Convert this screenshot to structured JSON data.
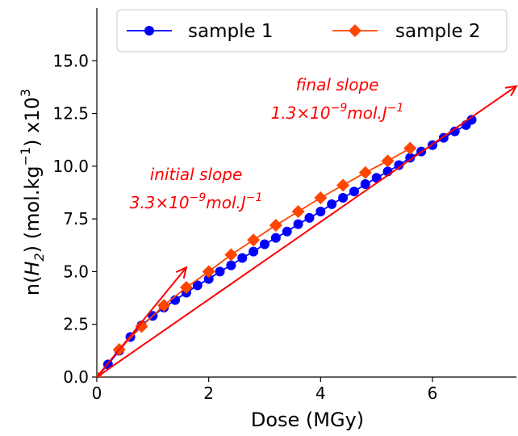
{
  "chart_data": {
    "type": "line",
    "xlabel": "Dose (MGy)",
    "ylabel_parts": {
      "prefix": "n(",
      "h": "H",
      "h_sub": "2",
      "mid": ") (mol.kg",
      "kg_sup": "−1",
      "post": ") x10",
      "ten_sup": "3"
    },
    "xlim": [
      0,
      7.5
    ],
    "ylim": [
      0,
      17.5
    ],
    "x_ticks": [
      0,
      2,
      4,
      6
    ],
    "x_tick_labels": [
      "0",
      "2",
      "4",
      "6"
    ],
    "y_ticks": [
      0,
      2.5,
      5,
      7.5,
      10,
      12.5,
      15
    ],
    "y_tick_labels": [
      "0.0",
      "2.5",
      "5.0",
      "7.5",
      "10.0",
      "12.5",
      "15.0"
    ],
    "grid": false,
    "legend_position": "top",
    "series": [
      {
        "name": "sample 1",
        "color": "#0000ff",
        "marker": "circle",
        "x": [
          0,
          0.2,
          0.4,
          0.6,
          0.8,
          1.0,
          1.2,
          1.4,
          1.6,
          1.8,
          2.0,
          2.2,
          2.4,
          2.6,
          2.8,
          3.0,
          3.2,
          3.4,
          3.6,
          3.8,
          4.0,
          4.2,
          4.4,
          4.6,
          4.8,
          5.0,
          5.2,
          5.4,
          5.6,
          5.8,
          6.0,
          6.2,
          6.4,
          6.6,
          6.7
        ],
        "y": [
          0,
          0.6,
          1.25,
          1.9,
          2.45,
          2.9,
          3.3,
          3.65,
          4.0,
          4.35,
          4.65,
          5.0,
          5.3,
          5.65,
          5.95,
          6.3,
          6.6,
          6.9,
          7.25,
          7.55,
          7.85,
          8.2,
          8.5,
          8.8,
          9.15,
          9.45,
          9.75,
          10.05,
          10.4,
          10.7,
          11.0,
          11.35,
          11.65,
          11.95,
          12.2
        ]
      },
      {
        "name": "sample 2",
        "color": "#ff4500",
        "marker": "diamond",
        "x": [
          0,
          0.4,
          0.8,
          1.2,
          1.6,
          2.0,
          2.4,
          2.8,
          3.2,
          3.6,
          4.0,
          4.4,
          4.8,
          5.2,
          5.6
        ],
        "y": [
          0,
          1.3,
          2.4,
          3.4,
          4.25,
          5.0,
          5.8,
          6.5,
          7.2,
          7.85,
          8.5,
          9.1,
          9.7,
          10.25,
          10.85
        ]
      }
    ],
    "annotations": [
      {
        "line1": "initial slope",
        "coef": "3.3×10",
        "exp": "−9",
        "unit": "mol.J",
        "unit_exp": "−1",
        "arrow_x": [
          0,
          1.6
        ],
        "arrow_y": [
          0,
          5.2
        ],
        "color": "#ff0000"
      },
      {
        "line1": "final slope",
        "coef": "1.3×10",
        "exp": "−9",
        "unit": "mol.J",
        "unit_exp": "−1",
        "arrow_x": [
          0,
          7.5
        ],
        "arrow_y": [
          0,
          13.8
        ],
        "color": "#ff0000"
      }
    ]
  }
}
